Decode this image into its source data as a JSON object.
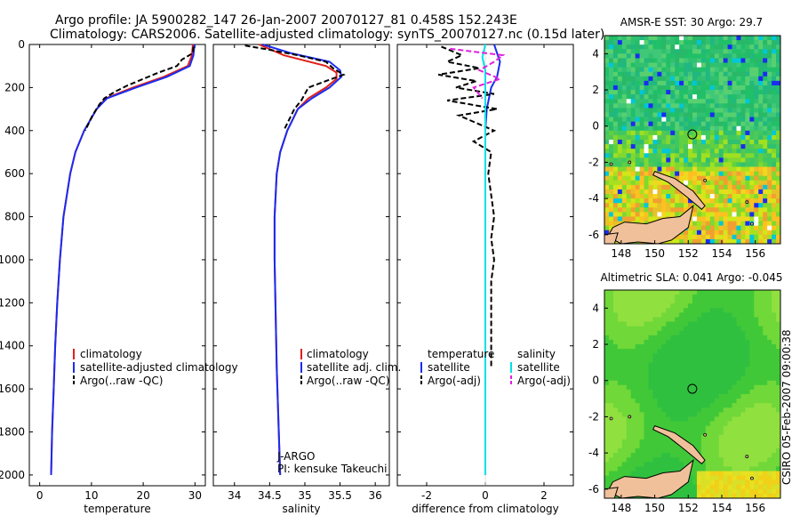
{
  "header": {
    "line1": "Argo profile: JA 5900282_147 26-Jan-2007 20070127_81 0.458S 152.243E",
    "line2": "Climatology: CARS2006. Satellite-adjusted climatology: synTS_20070127.nc (0.15d later)"
  },
  "side_stamp": "CSIRO 05-Feb-2007 09:00:38",
  "colors": {
    "clim": "#e0201a",
    "sat": "#1a2cf0",
    "argo": "#000000",
    "sat_sal": "#00e0e8",
    "argo_sal": "#e020e0",
    "land": "#f0c09a"
  },
  "chart_data": [
    {
      "type": "line",
      "name": "temperature-profile",
      "xlabel": "temperature",
      "xlim": [
        -2,
        32
      ],
      "xticks": [
        0,
        10,
        20,
        30
      ],
      "ylim": [
        0,
        2050
      ],
      "yticks": [
        0,
        200,
        400,
        600,
        800,
        1000,
        1200,
        1400,
        1600,
        1800,
        2000
      ],
      "legend": [
        "climatology",
        "satellite-adjusted climatology",
        "Argo(..raw -QC)"
      ],
      "series": [
        {
          "name": "climatology",
          "depth": [
            0,
            50,
            100,
            150,
            200,
            250,
            300,
            400,
            500,
            600,
            800,
            1000,
            1200,
            1400,
            1600,
            1800,
            2000
          ],
          "values": [
            29.6,
            29.4,
            28.6,
            24,
            18,
            12.8,
            11,
            8.6,
            6.9,
            5.9,
            4.6,
            3.9,
            3.4,
            3.0,
            2.7,
            2.4,
            2.2
          ]
        },
        {
          "name": "satellite",
          "depth": [
            0,
            50,
            100,
            150,
            200,
            250,
            300,
            400,
            500,
            600,
            800,
            1000,
            1200,
            1400,
            1600,
            1800,
            2000
          ],
          "values": [
            29.9,
            29.7,
            29.0,
            24.6,
            18.6,
            13,
            11,
            8.6,
            6.9,
            5.9,
            4.6,
            3.9,
            3.4,
            3.0,
            2.7,
            2.4,
            2.2
          ]
        },
        {
          "name": "argo",
          "depth": [
            10,
            40,
            70,
            100,
            130,
            160,
            190,
            220,
            250,
            280,
            330,
            400
          ],
          "values": [
            29.7,
            29.6,
            27.5,
            26.5,
            23,
            20,
            17,
            14.5,
            12.5,
            11.5,
            10.2,
            8.8
          ]
        }
      ]
    },
    {
      "type": "line",
      "name": "salinity-profile",
      "xlabel": "salinity",
      "xlim": [
        33.7,
        36.2
      ],
      "xticks": [
        34,
        34.5,
        35,
        35.5,
        36
      ],
      "ylim": [
        0,
        2050
      ],
      "legend": [
        "climatology",
        "satellite adj. clim.",
        "Argo(..raw -QC)"
      ],
      "annotation": [
        "J-ARGO",
        "PI: kensuke Takeuchi"
      ],
      "series": [
        {
          "name": "climatology",
          "depth": [
            0,
            50,
            100,
            130,
            160,
            200,
            250,
            300,
            400,
            500,
            600,
            800,
            1000,
            1500,
            2000
          ],
          "values": [
            34.35,
            34.7,
            35.3,
            35.45,
            35.45,
            35.3,
            35.05,
            34.9,
            34.75,
            34.65,
            34.6,
            34.57,
            34.57,
            34.6,
            34.65
          ]
        },
        {
          "name": "satellite",
          "depth": [
            0,
            40,
            80,
            120,
            150,
            200,
            250,
            300,
            400,
            500,
            600,
            800,
            1000,
            1500,
            2000
          ],
          "values": [
            34.4,
            34.8,
            35.35,
            35.5,
            35.52,
            35.35,
            35.1,
            34.9,
            34.75,
            34.65,
            34.6,
            34.57,
            34.57,
            34.6,
            34.65
          ]
        },
        {
          "name": "argo",
          "depth": [
            5,
            25,
            50,
            80,
            110,
            140,
            170,
            200,
            230,
            260,
            300,
            400
          ],
          "values": [
            34.15,
            34.5,
            34.9,
            35.3,
            35.4,
            35.55,
            35.3,
            35.05,
            35.0,
            34.95,
            34.85,
            34.7
          ]
        }
      ]
    },
    {
      "type": "line",
      "name": "difference-profile",
      "xlabel": "difference from climatology",
      "xlim": [
        -3,
        3
      ],
      "xticks": [
        -2,
        0,
        2
      ],
      "ylim": [
        0,
        2050
      ],
      "legend": {
        "temperature": [
          "satellite",
          "Argo(-adj)"
        ],
        "salinity": [
          "satellite",
          "Argo(-adj)"
        ]
      },
      "legend_headers": [
        "temperature",
        "salinity"
      ],
      "series": [
        {
          "name": "temp-satellite",
          "depth": [
            0,
            80,
            150,
            200,
            300,
            400,
            500,
            2000
          ],
          "values": [
            0.3,
            0.5,
            0.4,
            0.2,
            0.05,
            0,
            0,
            0
          ]
        },
        {
          "name": "temp-argo",
          "depth": [
            10,
            50,
            80,
            110,
            140,
            170,
            200,
            230,
            260,
            300,
            330,
            400,
            450,
            500,
            600,
            700,
            800,
            900,
            1000,
            1100,
            1200,
            1300,
            1400,
            1500
          ],
          "values": [
            -1.5,
            -0.8,
            -1.3,
            -0.2,
            -1.6,
            -0.3,
            -1.0,
            0.3,
            -1.3,
            0.4,
            -0.9,
            0.3,
            -0.4,
            0.2,
            0.1,
            0.2,
            0.3,
            0.2,
            0.3,
            0.2,
            0.2,
            0.2,
            0.2,
            0.2
          ]
        },
        {
          "name": "sal-satellite",
          "depth": [
            0,
            60,
            120,
            200,
            2000
          ],
          "values": [
            0,
            -0.1,
            0,
            0,
            0
          ]
        },
        {
          "name": "sal-argo",
          "depth": [
            20,
            50,
            80,
            120,
            160,
            200,
            250
          ],
          "values": [
            -1.2,
            0.6,
            0.3,
            -0.2,
            0.5,
            -0.4,
            -0.1
          ]
        }
      ]
    },
    {
      "type": "heatmap",
      "name": "amse-sst-map",
      "title": "AMSR-E SST: 30 Argo: 29.7",
      "xticks": [
        148,
        150,
        152,
        154,
        156
      ],
      "yticks": [
        4,
        2,
        0,
        -2,
        -4,
        -6
      ],
      "xlim": [
        147,
        157.5
      ],
      "ylim": [
        -6.5,
        5
      ],
      "argo_lon": 152.243,
      "argo_lat": -0.458
    },
    {
      "type": "heatmap",
      "name": "altimetric-sla-map",
      "title": "Altimetric SLA: 0.041 Argo: -0.045",
      "xticks": [
        148,
        150,
        152,
        154,
        156
      ],
      "yticks": [
        4,
        2,
        0,
        -2,
        -4,
        -6
      ],
      "xlim": [
        147,
        157.5
      ],
      "ylim": [
        -6.5,
        5
      ],
      "argo_lon": 152.243,
      "argo_lat": -0.458
    }
  ]
}
